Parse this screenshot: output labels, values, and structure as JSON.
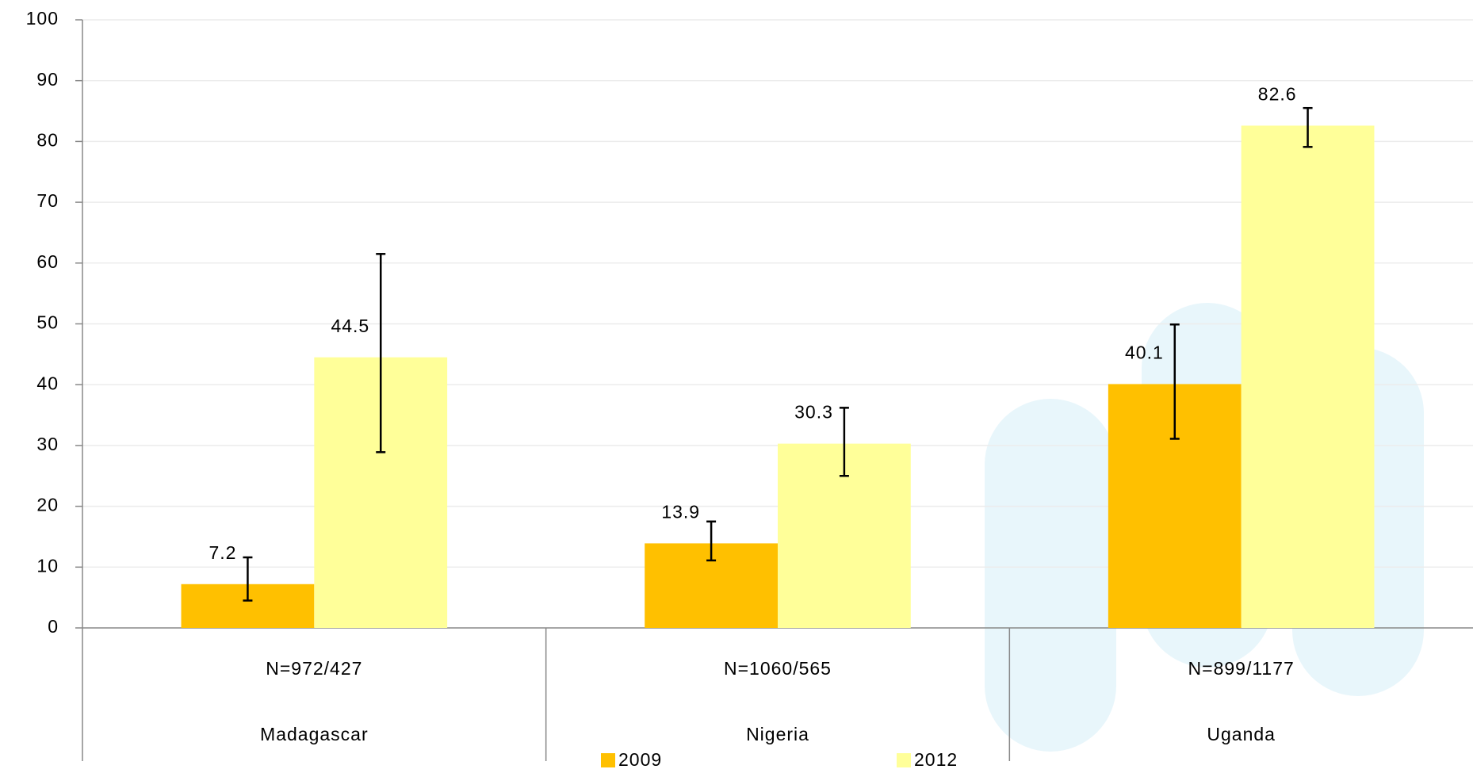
{
  "chart_data": {
    "type": "bar",
    "categories": [
      "Madagascar",
      "Nigeria",
      "Uganda"
    ],
    "sample_sizes": [
      "N=972/427",
      "N=1060/565",
      "N=899/1177"
    ],
    "series": [
      {
        "name": "2009",
        "color": "#ffc000",
        "values": [
          7.2,
          13.9,
          40.1
        ],
        "lower": [
          4.5,
          11.1,
          31.1
        ],
        "upper": [
          11.6,
          17.5,
          49.9
        ]
      },
      {
        "name": "2012",
        "color": "#ffff99",
        "values": [
          44.5,
          30.3,
          82.6
        ],
        "lower": [
          28.9,
          25.0,
          79.1
        ],
        "upper": [
          61.5,
          36.2,
          85.5
        ]
      }
    ],
    "ylim": [
      0,
      100
    ],
    "yticks": [
      0,
      10,
      20,
      30,
      40,
      50,
      60,
      70,
      80,
      90,
      100
    ],
    "grid": true,
    "legend": "bottom"
  }
}
